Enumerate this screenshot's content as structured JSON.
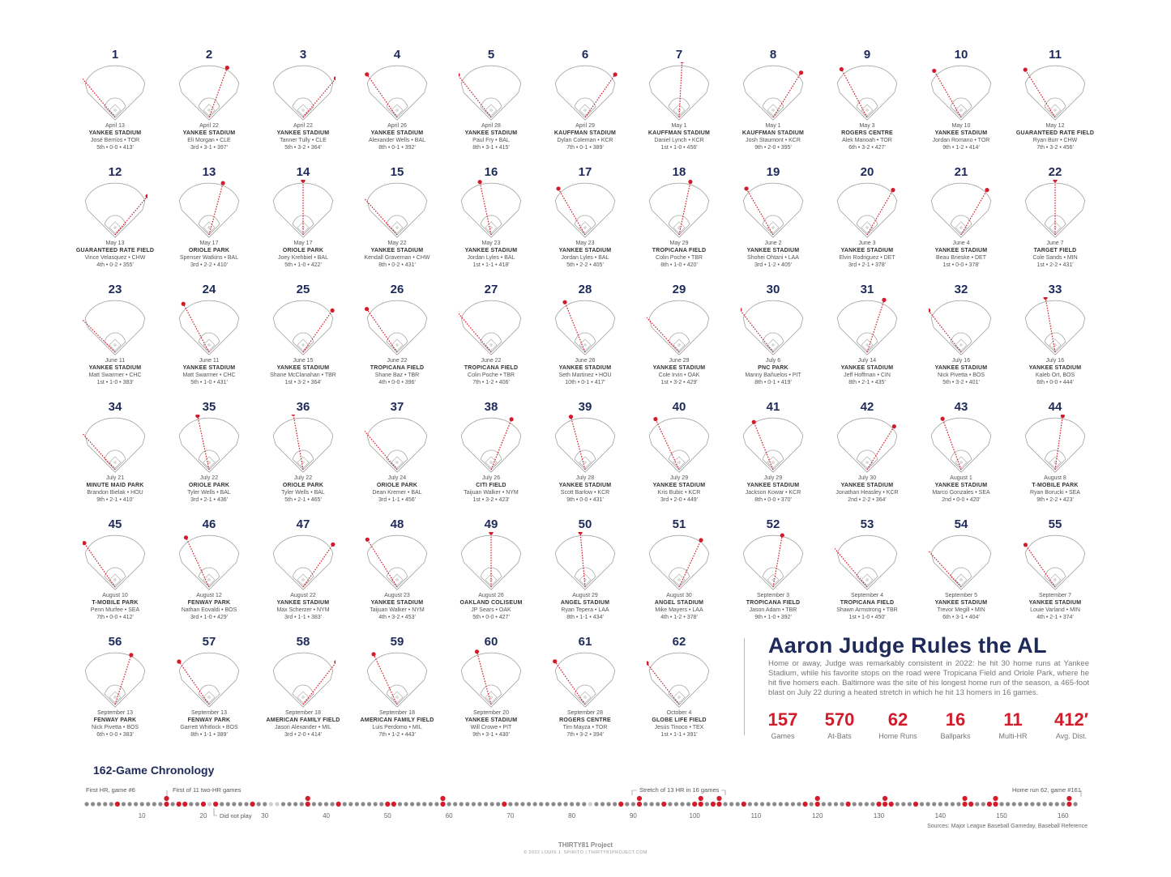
{
  "title": "Aaron Judge Rules the AL",
  "description": "Home or away, Judge was remarkably consistent in 2022: he hit 30 home runs at Yankee Stadium, while his favorite stops on the road were Tropicana Field and Oriole Park, where he hit five homers each. Baltimore was the site of his longest home run of the season, a 465-foot blast on July 22 during a heated stretch in which he hit 13 homers in 16 games.",
  "stats": [
    {
      "value": "157",
      "label": "Games"
    },
    {
      "value": "570",
      "label": "At-Bats"
    },
    {
      "value": "62",
      "label": "Home Runs"
    },
    {
      "value": "16",
      "label": "Ballparks"
    },
    {
      "value": "11",
      "label": "Multi-HR"
    },
    {
      "value": "412′",
      "label": "Avg. Dist."
    }
  ],
  "colors": {
    "hr": "#d31c2b",
    "navy": "#1d2a5a",
    "game": "#8a8a8a",
    "dnp": "#cfcfcf"
  },
  "chart_data": {
    "type": "scatter",
    "home_runs": [
      {
        "n": 1,
        "date": "April 13",
        "park": "YANKEE STADIUM",
        "pitcher": "José Berríos • TOR",
        "line": "5th • 0-0 • 413′",
        "dir": -40
      },
      {
        "n": 2,
        "date": "April 22",
        "park": "YANKEE STADIUM",
        "pitcher": "Eli Morgan • CLE",
        "line": "3rd • 3-1 • 397′",
        "dir": 20
      },
      {
        "n": 3,
        "date": "April 22",
        "park": "YANKEE STADIUM",
        "pitcher": "Tanner Tully • CLE",
        "line": "5th • 3-2 • 364′",
        "dir": 40
      },
      {
        "n": 4,
        "date": "April 26",
        "park": "YANKEE STADIUM",
        "pitcher": "Alexander Wells • BAL",
        "line": "8th • 0-1 • 392′",
        "dir": -35
      },
      {
        "n": 5,
        "date": "April 28",
        "park": "YANKEE STADIUM",
        "pitcher": "Paul Fry • BAL",
        "line": "8th • 3-1 • 415′",
        "dir": -38
      },
      {
        "n": 6,
        "date": "April 29",
        "park": "KAUFFMAN STADIUM",
        "pitcher": "Dylan Coleman • KCR",
        "line": "7th • 0-1 • 389′",
        "dir": 35
      },
      {
        "n": 7,
        "date": "May 1",
        "park": "KAUFFMAN STADIUM",
        "pitcher": "Daniel Lynch • KCR",
        "line": "1st • 1-0 • 456′",
        "dir": 3
      },
      {
        "n": 8,
        "date": "May 1",
        "park": "KAUFFMAN STADIUM",
        "pitcher": "Josh Staumont • KCR",
        "line": "9th • 2-0 • 395′",
        "dir": 32
      },
      {
        "n": 9,
        "date": "May 3",
        "park": "ROGERS CENTRE",
        "pitcher": "Alek Manoah • TOR",
        "line": "6th • 3-2 • 427′",
        "dir": -28
      },
      {
        "n": 10,
        "date": "May 10",
        "park": "YANKEE STADIUM",
        "pitcher": "Jordan Romano • TOR",
        "line": "9th • 1-2 • 414′",
        "dir": -30
      },
      {
        "n": 11,
        "date": "May 12",
        "park": "GUARANTEED RATE FIELD",
        "pitcher": "Ryan Burr • CHW",
        "line": "7th • 3-2 • 456′",
        "dir": -32
      },
      {
        "n": 12,
        "date": "May 13",
        "park": "GUARANTEED RATE FIELD",
        "pitcher": "Vince Velasquez • CHW",
        "line": "4th • 0-2 • 355′",
        "dir": 40
      },
      {
        "n": 13,
        "date": "May 17",
        "park": "ORIOLE PARK",
        "pitcher": "Spenser Watkins • BAL",
        "line": "3rd • 2-2 • 410′",
        "dir": 15
      },
      {
        "n": 14,
        "date": "May 17",
        "park": "ORIOLE PARK",
        "pitcher": "Joey Krehbiel • BAL",
        "line": "5th • 1-0 • 422′",
        "dir": 0
      },
      {
        "n": 15,
        "date": "May 22",
        "park": "YANKEE STADIUM",
        "pitcher": "Kendall Graveman • CHW",
        "line": "8th • 0-2 • 431′",
        "dir": -42
      },
      {
        "n": 16,
        "date": "May 23",
        "park": "YANKEE STADIUM",
        "pitcher": "Jordan Lyles • BAL",
        "line": "1st • 1-1 • 418′",
        "dir": -12
      },
      {
        "n": 17,
        "date": "May 23",
        "park": "YANKEE STADIUM",
        "pitcher": "Jordan Lyles • BAL",
        "line": "5th • 2-2 • 405′",
        "dir": -30
      },
      {
        "n": 18,
        "date": "May 29",
        "park": "TROPICANA FIELD",
        "pitcher": "Colin Poche • TBR",
        "line": "8th • 1-0 • 420′",
        "dir": 12
      },
      {
        "n": 19,
        "date": "June 2",
        "park": "YANKEE STADIUM",
        "pitcher": "Shohei Ohtani • LAA",
        "line": "3rd • 1-2 • 405′",
        "dir": -30
      },
      {
        "n": 20,
        "date": "June 3",
        "park": "YANKEE STADIUM",
        "pitcher": "Elvin Rodriguez • DET",
        "line": "3rd • 2-1 • 378′",
        "dir": 30
      },
      {
        "n": 21,
        "date": "June 4",
        "park": "YANKEE STADIUM",
        "pitcher": "Beau Brieske • DET",
        "line": "1st • 0-0 • 378′",
        "dir": 30
      },
      {
        "n": 22,
        "date": "June 7",
        "park": "TARGET FIELD",
        "pitcher": "Cole Sands • MIN",
        "line": "1st • 2-2 • 431′",
        "dir": 0
      },
      {
        "n": 23,
        "date": "June 11",
        "park": "YANKEE STADIUM",
        "pitcher": "Matt Swarmer • CHC",
        "line": "1st • 1-0 • 383′",
        "dir": -45
      },
      {
        "n": 24,
        "date": "June 11",
        "park": "YANKEE STADIUM",
        "pitcher": "Matt Swarmer • CHC",
        "line": "5th • 1-0 • 431′",
        "dir": -28
      },
      {
        "n": 25,
        "date": "June 15",
        "park": "YANKEE STADIUM",
        "pitcher": "Shane McClanahan • TBR",
        "line": "1st • 3-2 • 364′",
        "dir": 35
      },
      {
        "n": 26,
        "date": "June 22",
        "park": "TROPICANA FIELD",
        "pitcher": "Shane Baz • TBR",
        "line": "4th • 0-0 • 396′",
        "dir": -35
      },
      {
        "n": 27,
        "date": "June 22",
        "park": "TROPICANA FIELD",
        "pitcher": "Colin Poche • TBR",
        "line": "7th • 1-2 • 406′",
        "dir": -40
      },
      {
        "n": 28,
        "date": "June 26",
        "park": "YANKEE STADIUM",
        "pitcher": "Seth Martinez • HOU",
        "line": "10th • 0-1 • 417′",
        "dir": -22
      },
      {
        "n": 29,
        "date": "June 29",
        "park": "YANKEE STADIUM",
        "pitcher": "Cole Irvin • OAK",
        "line": "1st • 3-2 • 429′",
        "dir": -43
      },
      {
        "n": 30,
        "date": "July 6",
        "park": "PNC PARK",
        "pitcher": "Manny Bañuelos • PIT",
        "line": "8th • 0-1 • 419′",
        "dir": -38
      },
      {
        "n": 31,
        "date": "July 14",
        "park": "YANKEE STADIUM",
        "pitcher": "Jeff Hoffman • CIN",
        "line": "8th • 2-1 • 435′",
        "dir": 18
      },
      {
        "n": 32,
        "date": "July 16",
        "park": "YANKEE STADIUM",
        "pitcher": "Nick Pivetta • BOS",
        "line": "5th • 3-2 • 401′",
        "dir": -38
      },
      {
        "n": 33,
        "date": "July 16",
        "park": "YANKEE STADIUM",
        "pitcher": "Kaleb Ort, BOS",
        "line": "6th • 0-0 • 444′",
        "dir": -10
      },
      {
        "n": 34,
        "date": "July 21",
        "park": "MINUTE MAID PARK",
        "pitcher": "Brandon Bielak • HOU",
        "line": "9th • 2-1 • 410′",
        "dir": -42
      },
      {
        "n": 35,
        "date": "July 22",
        "park": "ORIOLE PARK",
        "pitcher": "Tyler Wells • BAL",
        "line": "3rd • 2-1 • 436′",
        "dir": -12
      },
      {
        "n": 36,
        "date": "July 22",
        "park": "ORIOLE PARK",
        "pitcher": "Tyler Wells • BAL",
        "line": "5th • 2-1 • 465′",
        "dir": -10
      },
      {
        "n": 37,
        "date": "July 24",
        "park": "ORIOLE PARK",
        "pitcher": "Dean Kremer • BAL",
        "line": "3rd • 1-1 • 456′",
        "dir": -40
      },
      {
        "n": 38,
        "date": "July 26",
        "park": "CITI FIELD",
        "pitcher": "Taijuan Walker • NYM",
        "line": "1st • 3-2 • 423′",
        "dir": 22
      },
      {
        "n": 39,
        "date": "July 28",
        "park": "YANKEE STADIUM",
        "pitcher": "Scott Barlow • KCR",
        "line": "9th • 0-0 • 431′",
        "dir": -15
      },
      {
        "n": 40,
        "date": "July 29",
        "park": "YANKEE STADIUM",
        "pitcher": "Kris Bubic • KCR",
        "line": "3rd • 2-0 • 449′",
        "dir": -25
      },
      {
        "n": 41,
        "date": "July 29",
        "park": "YANKEE STADIUM",
        "pitcher": "Jackson Kowar • KCR",
        "line": "8th • 0-0 • 370′",
        "dir": -22
      },
      {
        "n": 42,
        "date": "July 30",
        "park": "YANKEE STADIUM",
        "pitcher": "Jonathan Heasley • KCR",
        "line": "2nd • 2-2 • 364′",
        "dir": 32
      },
      {
        "n": 43,
        "date": "August 1",
        "park": "YANKEE STADIUM",
        "pitcher": "Marco Gonzales • SEA",
        "line": "2nd • 0-0 • 420′",
        "dir": -20
      },
      {
        "n": 44,
        "date": "August 8",
        "park": "T-MOBILE PARK",
        "pitcher": "Ryan Borucki • SEA",
        "line": "9th • 2-2 • 423′",
        "dir": 8
      },
      {
        "n": 45,
        "date": "August 10",
        "park": "T-MOBILE PARK",
        "pitcher": "Penn Murfee • SEA",
        "line": "7th • 0-0 • 412′",
        "dir": -35
      },
      {
        "n": 46,
        "date": "August 12",
        "park": "FENWAY PARK",
        "pitcher": "Nathan Eovaldi • BOS",
        "line": "3rd • 1-0 • 429′",
        "dir": -25
      },
      {
        "n": 47,
        "date": "August 22",
        "park": "YANKEE STADIUM",
        "pitcher": "Max Scherzer • NYM",
        "line": "3rd • 1-1 • 383′",
        "dir": 35
      },
      {
        "n": 48,
        "date": "August 23",
        "park": "YANKEE STADIUM",
        "pitcher": "Taijuan Walker • NYM",
        "line": "4th • 3-2 • 453′",
        "dir": -32
      },
      {
        "n": 49,
        "date": "August 26",
        "park": "OAKLAND COLISEUM",
        "pitcher": "JP Sears • OAK",
        "line": "5th • 0-0 • 427′",
        "dir": 0
      },
      {
        "n": 50,
        "date": "August 29",
        "park": "ANGEL STADIUM",
        "pitcher": "Ryan Tepera • LAA",
        "line": "8th • 1-1 • 434′",
        "dir": -5
      },
      {
        "n": 51,
        "date": "August 30",
        "park": "ANGEL STADIUM",
        "pitcher": "Mike Mayers • LAA",
        "line": "4th • 1-2 • 378′",
        "dir": 25
      },
      {
        "n": 52,
        "date": "September 3",
        "park": "TROPICANA FIELD",
        "pitcher": "Jason Adam • TBR",
        "line": "9th • 1-0 • 392′",
        "dir": 10
      },
      {
        "n": 53,
        "date": "September 4",
        "park": "TROPICANA FIELD",
        "pitcher": "Shawn Armstrong • TBR",
        "line": "1st • 1-0 • 450′",
        "dir": -40
      },
      {
        "n": 54,
        "date": "September 5",
        "park": "YANKEE STADIUM",
        "pitcher": "Trevor Megill • MIN",
        "line": "6th • 3-1 • 404′",
        "dir": -42
      },
      {
        "n": 55,
        "date": "September 7",
        "park": "YANKEE STADIUM",
        "pitcher": "Louie Varland • MIN",
        "line": "4th • 2-1 • 374′",
        "dir": -35
      },
      {
        "n": 56,
        "date": "September 13",
        "park": "FENWAY PARK",
        "pitcher": "Nick Pivetta • BOS",
        "line": "6th • 0-0 • 383′",
        "dir": 18
      },
      {
        "n": 57,
        "date": "September 13",
        "park": "FENWAY PARK",
        "pitcher": "Garrett Whitlock • BOS",
        "line": "8th • 1-1 • 389′",
        "dir": -35
      },
      {
        "n": 58,
        "date": "September 18",
        "park": "AMERICAN FAMILY FIELD",
        "pitcher": "Jason Alexander • MIL",
        "line": "3rd • 2-0 • 414′",
        "dir": 38
      },
      {
        "n": 59,
        "date": "September 18",
        "park": "AMERICAN FAMILY FIELD",
        "pitcher": "Luis Perdomo • MIL",
        "line": "7th • 1-2 • 443′",
        "dir": -25
      },
      {
        "n": 60,
        "date": "September 20",
        "park": "YANKEE STADIUM",
        "pitcher": "Will Crowe • PIT",
        "line": "9th • 3-1 • 430′",
        "dir": -15
      },
      {
        "n": 61,
        "date": "September 28",
        "park": "ROGERS CENTRE",
        "pitcher": "Tim Mayza • TOR",
        "line": "7th • 3-2 • 394′",
        "dir": -35
      },
      {
        "n": 62,
        "date": "October 4",
        "park": "GLOBE LIFE FIELD",
        "pitcher": "Jesús Tinoco • TEX",
        "line": "1st • 1-1 • 391′",
        "dir": -38
      }
    ],
    "chronology": {
      "title": "162-Game Chronology",
      "games": 162,
      "hr_games": [
        6,
        14,
        16,
        17,
        20,
        22,
        28,
        37,
        42,
        50,
        51,
        59,
        69,
        88,
        91,
        95,
        100,
        101,
        103,
        104,
        108,
        118,
        120,
        125,
        130,
        131,
        132,
        136,
        144,
        145,
        148,
        149,
        161
      ],
      "dnp_games": [
        21,
        31,
        32,
        50,
        83
      ],
      "ticks": [
        10,
        20,
        30,
        40,
        50,
        60,
        70,
        80,
        90,
        100,
        110,
        120,
        130,
        140,
        150,
        160
      ],
      "annotations": [
        {
          "text": "First HR, game #6",
          "game": 6
        },
        {
          "text": "First of 11 two-HR games",
          "game": 14
        },
        {
          "text": "Did not play",
          "game": 21
        },
        {
          "text": "Stretch of 13 HR in 16 games",
          "game": 89
        },
        {
          "text": "Home run 62, game #161",
          "game": 161
        }
      ]
    }
  },
  "sources": "Sources: Major League Baseball Gameday, Baseball Reference",
  "footer": {
    "brand": "THIRTY81 Project",
    "copyright": "© 2022 LOUIS J. SPIRITO  |  THIRTY81PROJECT.COM"
  }
}
